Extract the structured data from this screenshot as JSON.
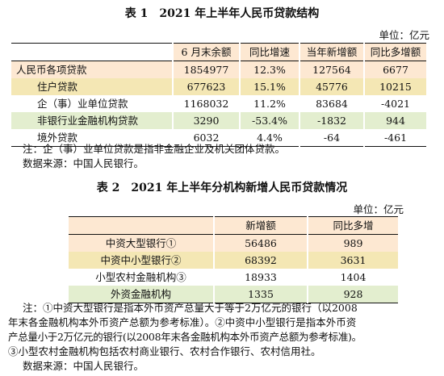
{
  "table1": {
    "title": "表 1　2021 年上半年人民币贷款结构",
    "unit": "单位：亿元",
    "headers": [
      "",
      "6 月末余额",
      "同比增速",
      "当年新增额",
      "同比多增额"
    ],
    "rows": [
      [
        "人民币各项贷款",
        "1854977",
        "12.3%",
        "127564",
        "6677"
      ],
      [
        "住户贷款",
        "677623",
        "15.1%",
        "45776",
        "10215"
      ],
      [
        "企（事）业单位贷款",
        "1168032",
        "11.2%",
        "83684",
        "-4021"
      ],
      [
        "非银行业金融机构贷款",
        "3290",
        "-53.4%",
        "-1832",
        "944"
      ],
      [
        "境外贷款",
        "6032",
        "4.4%",
        "-64",
        "-461"
      ]
    ],
    "note": "注：企（事）业单位贷款是指非金融企业及机关团体贷款。",
    "source": "数据来源：中国人民银行。"
  },
  "table2": {
    "title": "表 2　2021 年上半年分机构新增人民币贷款情况",
    "unit": "单位：亿元",
    "headers": [
      "",
      "新增额",
      "同比多增"
    ],
    "rows": [
      [
        "中资大型银行①",
        "56486",
        "989"
      ],
      [
        "中资中小型银行②",
        "68392",
        "3631"
      ],
      [
        "小型农村金融机构③",
        "18933",
        "1404"
      ],
      [
        "外资金融机构",
        "1335",
        "928"
      ]
    ],
    "notes": [
      "注：①中资大型银行是指本外币资产总量大于等于2万亿元的银行（以2008",
      "年末各金融机构本外币资产总额为参考标准）。②中资中小型银行是指本外币资",
      "产总量小于2万亿元的银行(以2008年末各金融机构本外币资产总额为参考标准)。",
      "③小型农村金融机构包括农村商业银行、农村合作银行、农村信用社。"
    ],
    "source": "数据来源：中国人民银行。"
  }
}
